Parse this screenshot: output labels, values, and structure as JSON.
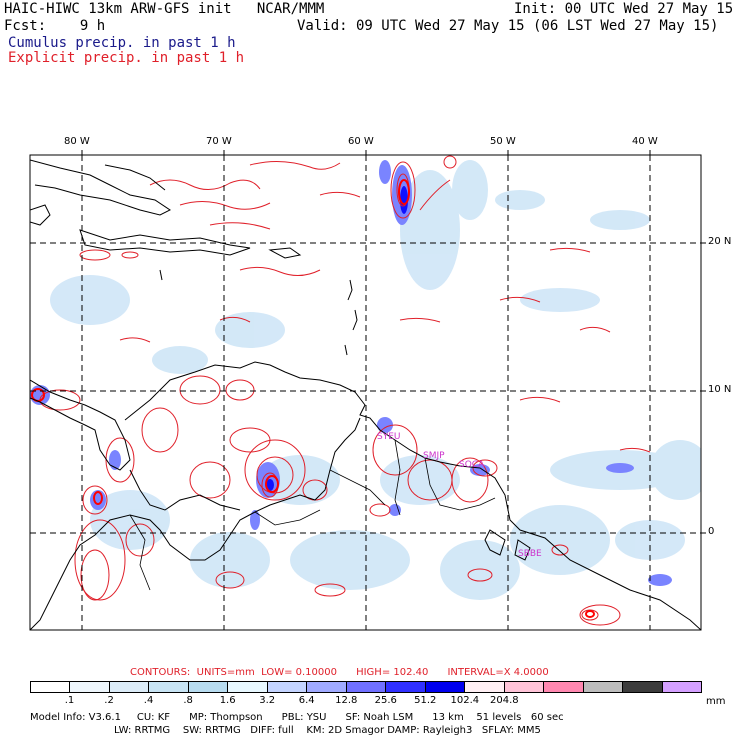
{
  "header": {
    "title_left": "HAIC-HIWC 13km ARW-GFS init",
    "org": "NCAR/MMM",
    "init": "Init: 00 UTC Wed 27 May 15",
    "fcst_label": "Fcst:",
    "fcst_value": "9 h",
    "valid": "Valid: 09 UTC Wed 27 May 15 (06 LST Wed 27 May 15)",
    "legend_cumulus": "Cumulus precip. in past 1 h",
    "legend_explicit": "Explicit precip. in past 1 h"
  },
  "map": {
    "lon_labels": [
      "80 W",
      "70 W",
      "60 W",
      "50 W",
      "40 W"
    ],
    "lat_labels": [
      "20 N",
      "10 N",
      "0"
    ],
    "stations": [
      "SYEU",
      "SMJP",
      "SOCA",
      "SBBE"
    ],
    "colors": {
      "coast": "#000000",
      "grid": "#000000",
      "explicit_contour": "#e0202a"
    }
  },
  "contours": {
    "label": "CONTOURS:",
    "units": "UNITS=mm",
    "low": "LOW= 0.10000",
    "high": "HIGH= 102.40",
    "interval": "INTERVAL=X 4.0000"
  },
  "colorbar": {
    "colors": [
      "#ffffff",
      "#eef6fc",
      "#dcecf8",
      "#c8e4f4",
      "#b8dcf0",
      "#e8f8ff",
      "#c4d4ff",
      "#a0aaff",
      "#7070ff",
      "#3030ff",
      "#0000ee",
      "#fff0f4",
      "#ffc4d8",
      "#ff88b0",
      "#bdbdbd",
      "#3c3c3c",
      "#d4a0ff"
    ],
    "ticks": [
      ".1",
      ".2",
      ".4",
      ".8",
      "1.6",
      "3.2",
      "6.4",
      "12.8",
      "25.6",
      "51.2",
      "102.4",
      "204.8"
    ],
    "unit": "mm"
  },
  "model_info": {
    "line1": "Model Info: V3.6.1     CU: KF      MP: Thompson      PBL: YSU      SF: Noah LSM      13 km    51 levels   60 sec",
    "line2": "LW: RRTMG    SW: RRTMG   DIFF: full    KM: 2D Smagor DAMP: Rayleigh3   SFLAY: MM5"
  }
}
